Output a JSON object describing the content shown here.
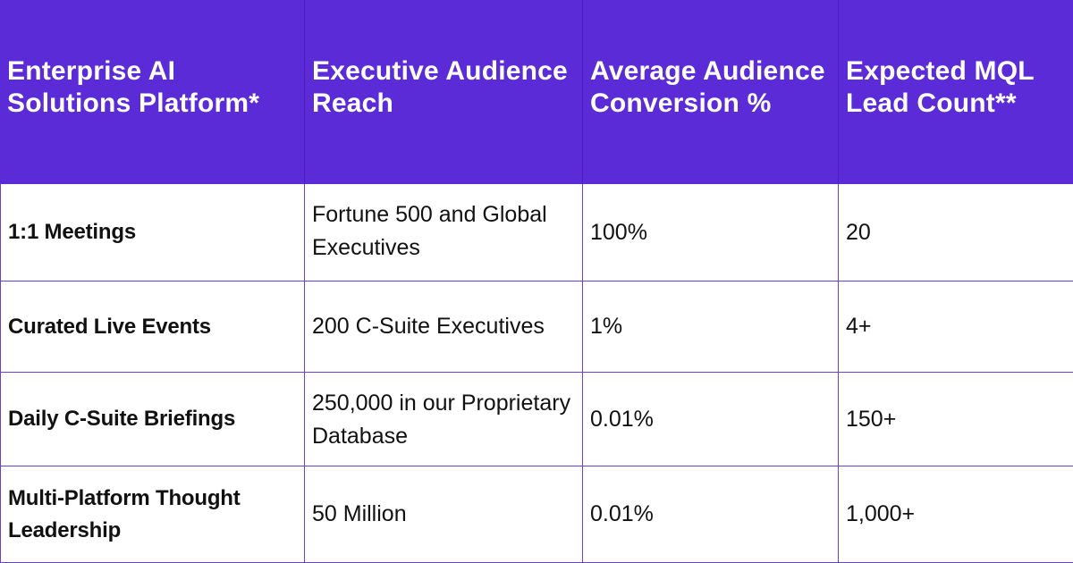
{
  "table": {
    "headers": [
      "Enterprise AI Solutions Platform*",
      "Executive Audience Reach",
      "Average Audience Conversion %",
      "Expected MQL Lead Count**"
    ],
    "rows": [
      {
        "platform": "1:1 Meetings",
        "reach": "Fortune 500 and Global Executives",
        "conversion": "100%",
        "leads": "20"
      },
      {
        "platform": "Curated Live Events",
        "reach": "200 C-Suite Executives",
        "conversion": "1%",
        "leads": "4+"
      },
      {
        "platform": "Daily C-Suite Briefings",
        "reach": "250,000 in our Proprietary Database",
        "conversion": "0.01%",
        "leads": "150+"
      },
      {
        "platform": "Multi-Platform Thought Leadership",
        "reach": "50 Million",
        "conversion": "0.01%",
        "leads": "1,000+"
      }
    ]
  },
  "colors": {
    "header_background": "#5a2bd6",
    "header_text": "#ffffff",
    "grid_lines": "#6a3fd6",
    "body_text": "#111111"
  }
}
